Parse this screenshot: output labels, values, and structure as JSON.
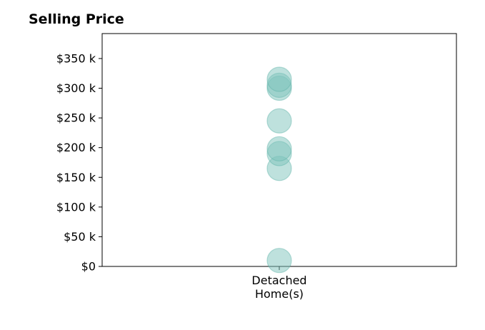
{
  "chart_data": {
    "type": "scatter",
    "title": "Selling Price",
    "xlabel": "",
    "ylabel": "",
    "categories": [
      [
        "Detached",
        "Home(s)"
      ]
    ],
    "ylim": [
      0,
      392000
    ],
    "yticks": [
      0,
      50000,
      100000,
      150000,
      200000,
      250000,
      300000,
      350000
    ],
    "ytick_labels": [
      "$0",
      "$50 k",
      "$100 k",
      "$150 k",
      "$200 k",
      "$250 k",
      "$300 k",
      "$350 k"
    ],
    "series": [
      {
        "category_index": 0,
        "values": [
          10000,
          165000,
          190000,
          198000,
          245000,
          300000,
          305000,
          315000
        ]
      }
    ],
    "grid": false,
    "legend": "none",
    "marker_color": "#7ec4bb",
    "marker_edge_color": "#5fb3a8"
  }
}
